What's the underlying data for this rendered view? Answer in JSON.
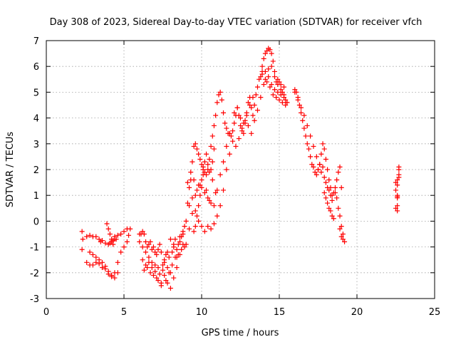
{
  "chart_data": {
    "type": "scatter",
    "title": "Day 308 of 2023, Sidereal Day-to-day VTEC variation (SDTVAR) for receiver vfch",
    "xlabel": "GPS time / hours",
    "ylabel": "SDTVAR / TECUs",
    "xlim": [
      0,
      25
    ],
    "ylim": [
      -3,
      7
    ],
    "xticks": [
      0,
      5,
      10,
      15,
      20,
      25
    ],
    "yticks": [
      -3,
      -2,
      -1,
      0,
      1,
      2,
      3,
      4,
      5,
      6,
      7
    ],
    "grid": true,
    "marker": "plus",
    "color": "#ff0000",
    "series": [
      {
        "name": "SDTVAR",
        "x": [
          2.3,
          2.3,
          2.35,
          2.6,
          2.8,
          3.0,
          3.2,
          3.4,
          3.5,
          3.6,
          3.8,
          4.0,
          4.1,
          4.2,
          4.3,
          4.4,
          4.5,
          4.6,
          4.8,
          5.0,
          5.2,
          5.4,
          2.8,
          3.0,
          3.2,
          3.4,
          3.6,
          3.8,
          4.0,
          4.2,
          4.4,
          4.6,
          4.8,
          5.0,
          5.2,
          5.3,
          2.6,
          2.8,
          3.0,
          3.2,
          3.4,
          3.6,
          3.8,
          4.0,
          4.2,
          4.4,
          4.6,
          3.9,
          4.0,
          4.1,
          4.2,
          4.3,
          4.4,
          6.0,
          6.1,
          6.2,
          6.3,
          6.4,
          6.5,
          6.6,
          6.7,
          6.8,
          6.9,
          7.0,
          7.1,
          7.2,
          7.3,
          7.4,
          7.5,
          7.6,
          7.7,
          7.8,
          7.9,
          8.0,
          8.1,
          8.2,
          8.3,
          8.4,
          8.5,
          8.6,
          8.7,
          8.8,
          8.9,
          6.2,
          6.4,
          6.6,
          6.8,
          7.0,
          7.2,
          7.4,
          7.6,
          7.8,
          8.0,
          8.2,
          8.4,
          8.6,
          8.8,
          6.3,
          6.5,
          6.7,
          6.9,
          7.1,
          7.3,
          7.5,
          7.7,
          7.9,
          8.1,
          8.3,
          8.5,
          8.7,
          8.9,
          6.0,
          6.2,
          6.4,
          6.6,
          6.8,
          7.0,
          7.2,
          7.4,
          7.6,
          7.8,
          8.0,
          8.2,
          8.4,
          8.6,
          8.8,
          9.0,
          9.1,
          9.2,
          9.3,
          9.4,
          9.5,
          9.6,
          9.7,
          9.8,
          9.9,
          10.0,
          10.1,
          10.2,
          10.3,
          10.4,
          10.5,
          10.6,
          10.7,
          10.8,
          10.9,
          11.0,
          11.1,
          11.2,
          11.3,
          11.4,
          11.5,
          11.6,
          11.7,
          11.8,
          11.9,
          9.0,
          9.2,
          9.4,
          9.6,
          9.8,
          10.0,
          10.2,
          10.4,
          10.6,
          10.8,
          11.0,
          11.2,
          11.4,
          11.6,
          11.8,
          9.2,
          9.4,
          9.6,
          9.8,
          10.0,
          10.2,
          10.4,
          10.6,
          10.8,
          11.0,
          11.2,
          11.4,
          11.6,
          11.8,
          9.1,
          9.3,
          9.5,
          9.7,
          9.9,
          10.1,
          10.3,
          10.5,
          10.7,
          10.9,
          9.5,
          9.6,
          9.7,
          9.8,
          9.9,
          10.0,
          10.1,
          10.2,
          10.3,
          10.4,
          10.5,
          10.6,
          10.7,
          10.8,
          12.0,
          12.1,
          12.2,
          12.3,
          12.4,
          12.5,
          12.6,
          12.7,
          12.8,
          12.9,
          13.0,
          13.1,
          13.2,
          13.3,
          13.4,
          13.5,
          13.6,
          13.7,
          13.8,
          13.9,
          12.0,
          12.2,
          12.4,
          12.6,
          12.8,
          13.0,
          13.2,
          13.4,
          13.6,
          13.8,
          12.1,
          12.3,
          12.5,
          12.7,
          12.9,
          13.1,
          13.3,
          13.9,
          14.0,
          14.1,
          14.2,
          14.3,
          14.4,
          14.5,
          14.6,
          14.7,
          14.8,
          14.9,
          15.0,
          15.1,
          15.2,
          15.3,
          15.4,
          15.5,
          13.9,
          14.1,
          14.3,
          14.5,
          14.7,
          14.9,
          15.1,
          15.3,
          15.5,
          14.0,
          14.2,
          14.4,
          14.6,
          14.8,
          15.0,
          15.2,
          15.4,
          14.1,
          14.3,
          14.5,
          14.7,
          14.9,
          15.1,
          15.3,
          16.0,
          16.1,
          16.2,
          16.3,
          16.4,
          16.5,
          16.6,
          16.7,
          16.8,
          16.9,
          17.0,
          17.1,
          17.2,
          17.3,
          17.4,
          17.5,
          17.6,
          17.7,
          17.8,
          17.9,
          18.0,
          18.1,
          18.2,
          18.3,
          18.4,
          18.5,
          18.6,
          18.7,
          18.8,
          18.9,
          19.0,
          16.0,
          16.2,
          16.4,
          16.6,
          16.8,
          17.0,
          17.2,
          17.4,
          17.5,
          17.6,
          17.7,
          17.8,
          17.9,
          18.0,
          18.1,
          18.2,
          18.3,
          18.4,
          17.9,
          18.0,
          18.1,
          18.2,
          18.3,
          18.4,
          18.5,
          18.6,
          18.7,
          18.8,
          18.9,
          19.0,
          19.1,
          18.9,
          19.0,
          19.1,
          19.2,
          22.5,
          22.5,
          22.6,
          22.6,
          22.6,
          22.7,
          22.7,
          22.7,
          22.6,
          22.6,
          22.5,
          22.6,
          22.7,
          22.6
        ],
        "y": [
          -1.1,
          -0.4,
          -0.7,
          -0.6,
          -0.55,
          -0.6,
          -0.6,
          -0.7,
          -0.8,
          -0.75,
          -0.85,
          -0.9,
          -0.85,
          -0.8,
          -0.75,
          -0.7,
          -0.7,
          -0.55,
          -0.5,
          -0.4,
          -0.3,
          -0.3,
          -1.2,
          -1.3,
          -1.4,
          -1.5,
          -1.6,
          -1.75,
          -1.95,
          -2.1,
          -2.0,
          -1.6,
          -1.2,
          -1.0,
          -0.8,
          -0.55,
          -1.6,
          -1.7,
          -1.7,
          -1.6,
          -1.65,
          -1.8,
          -1.85,
          -2.05,
          -2.15,
          -2.2,
          -2.0,
          -0.1,
          -0.3,
          -0.5,
          -0.7,
          -0.9,
          -0.6,
          -0.8,
          -0.5,
          -0.4,
          -0.5,
          -0.8,
          -1.0,
          -0.9,
          -0.8,
          -1.1,
          -1.0,
          -1.2,
          -1.3,
          -1.1,
          -0.9,
          -1.2,
          -1.7,
          -1.5,
          -1.3,
          -1.8,
          -1.4,
          -2.0,
          -1.2,
          -1.0,
          -0.7,
          -1.4,
          -0.9,
          -0.6,
          -0.6,
          -0.4,
          -0.2,
          -1.5,
          -1.7,
          -1.6,
          -1.8,
          -1.95,
          -2.3,
          -2.5,
          -2.1,
          -2.4,
          -2.6,
          -2.2,
          -1.8,
          -1.3,
          -0.9,
          -1.9,
          -1.8,
          -2.0,
          -2.1,
          -2.2,
          -2.05,
          -1.9,
          -2.3,
          -2.0,
          -1.7,
          -1.4,
          -1.3,
          -1.1,
          -1.0,
          -0.5,
          -1.0,
          -1.2,
          -1.4,
          -1.6,
          -1.7,
          -1.8,
          -2.4,
          -1.6,
          -1.2,
          -0.7,
          -0.9,
          -1.1,
          -0.8,
          -0.5,
          0.0,
          0.7,
          1.3,
          1.6,
          2.3,
          2.9,
          3.0,
          2.8,
          2.6,
          2.4,
          2.2,
          2.1,
          1.9,
          1.8,
          2.0,
          2.4,
          2.9,
          3.3,
          3.7,
          4.1,
          4.6,
          4.9,
          5.0,
          4.7,
          4.2,
          3.8,
          3.6,
          3.4,
          3.4,
          3.3,
          -0.9,
          -0.3,
          0.3,
          1.0,
          1.4,
          1.3,
          1.1,
          0.9,
          0.7,
          0.6,
          1.2,
          1.8,
          2.3,
          2.9,
          3.4,
          0.6,
          0.9,
          0.4,
          0.0,
          -0.2,
          -0.4,
          -0.2,
          -0.3,
          -0.1,
          0.2,
          0.6,
          1.2,
          2.0,
          2.6,
          1.5,
          1.9,
          1.6,
          1.2,
          1.4,
          1.8,
          1.2,
          0.8,
          1.6,
          1.1,
          -0.4,
          -0.2,
          0.2,
          0.6,
          1.0,
          1.6,
          2.0,
          2.3,
          2.6,
          2.2,
          1.9,
          2.0,
          2.3,
          2.8,
          3.5,
          3.8,
          4.1,
          4.4,
          4.1,
          3.7,
          3.5,
          3.4,
          3.8,
          4.2,
          4.6,
          4.8,
          4.4,
          4.1,
          4.5,
          4.9,
          5.2,
          5.5,
          5.6,
          5.8,
          3.1,
          2.9,
          3.2,
          3.6,
          3.9,
          3.7,
          3.4,
          3.9,
          4.3,
          4.8,
          4.2,
          4.4,
          4.0,
          3.8,
          4.1,
          4.5,
          4.8,
          6.0,
          6.3,
          6.5,
          6.6,
          6.7,
          6.65,
          6.5,
          6.2,
          5.8,
          5.4,
          5.3,
          5.4,
          5.1,
          5.0,
          4.9,
          4.7,
          4.6,
          5.7,
          5.5,
          5.6,
          5.3,
          5.1,
          5.0,
          4.9,
          4.8,
          4.6,
          5.3,
          5.4,
          5.2,
          4.9,
          4.8,
          4.7,
          4.6,
          4.5,
          5.8,
          5.9,
          6.0,
          5.6,
          5.5,
          5.3,
          5.2,
          5.1,
          5.0,
          4.8,
          4.5,
          4.2,
          3.9,
          3.6,
          3.3,
          3.0,
          2.8,
          2.5,
          2.2,
          2.1,
          1.9,
          1.8,
          2.0,
          2.2,
          2.6,
          3.0,
          2.8,
          2.4,
          2.0,
          1.6,
          1.3,
          1.0,
          1.1,
          1.3,
          1.6,
          1.9,
          2.1,
          1.3,
          5.0,
          4.7,
          4.4,
          4.1,
          3.7,
          3.3,
          2.9,
          2.5,
          2.0,
          2.2,
          1.9,
          2.1,
          1.7,
          1.5,
          1.3,
          1.2,
          1.0,
          0.8,
          1.1,
          0.9,
          0.7,
          0.5,
          0.4,
          0.2,
          0.1,
          1.1,
          0.9,
          0.5,
          0.2,
          -0.2,
          -0.5,
          -0.3,
          -0.6,
          -0.7,
          -0.8,
          1.5,
          0.5,
          1.6,
          1.0,
          0.9,
          1.8,
          2.0,
          2.1,
          0.4,
          0.6,
          1.2,
          1.4,
          1.7,
          0.95
        ]
      }
    ]
  }
}
